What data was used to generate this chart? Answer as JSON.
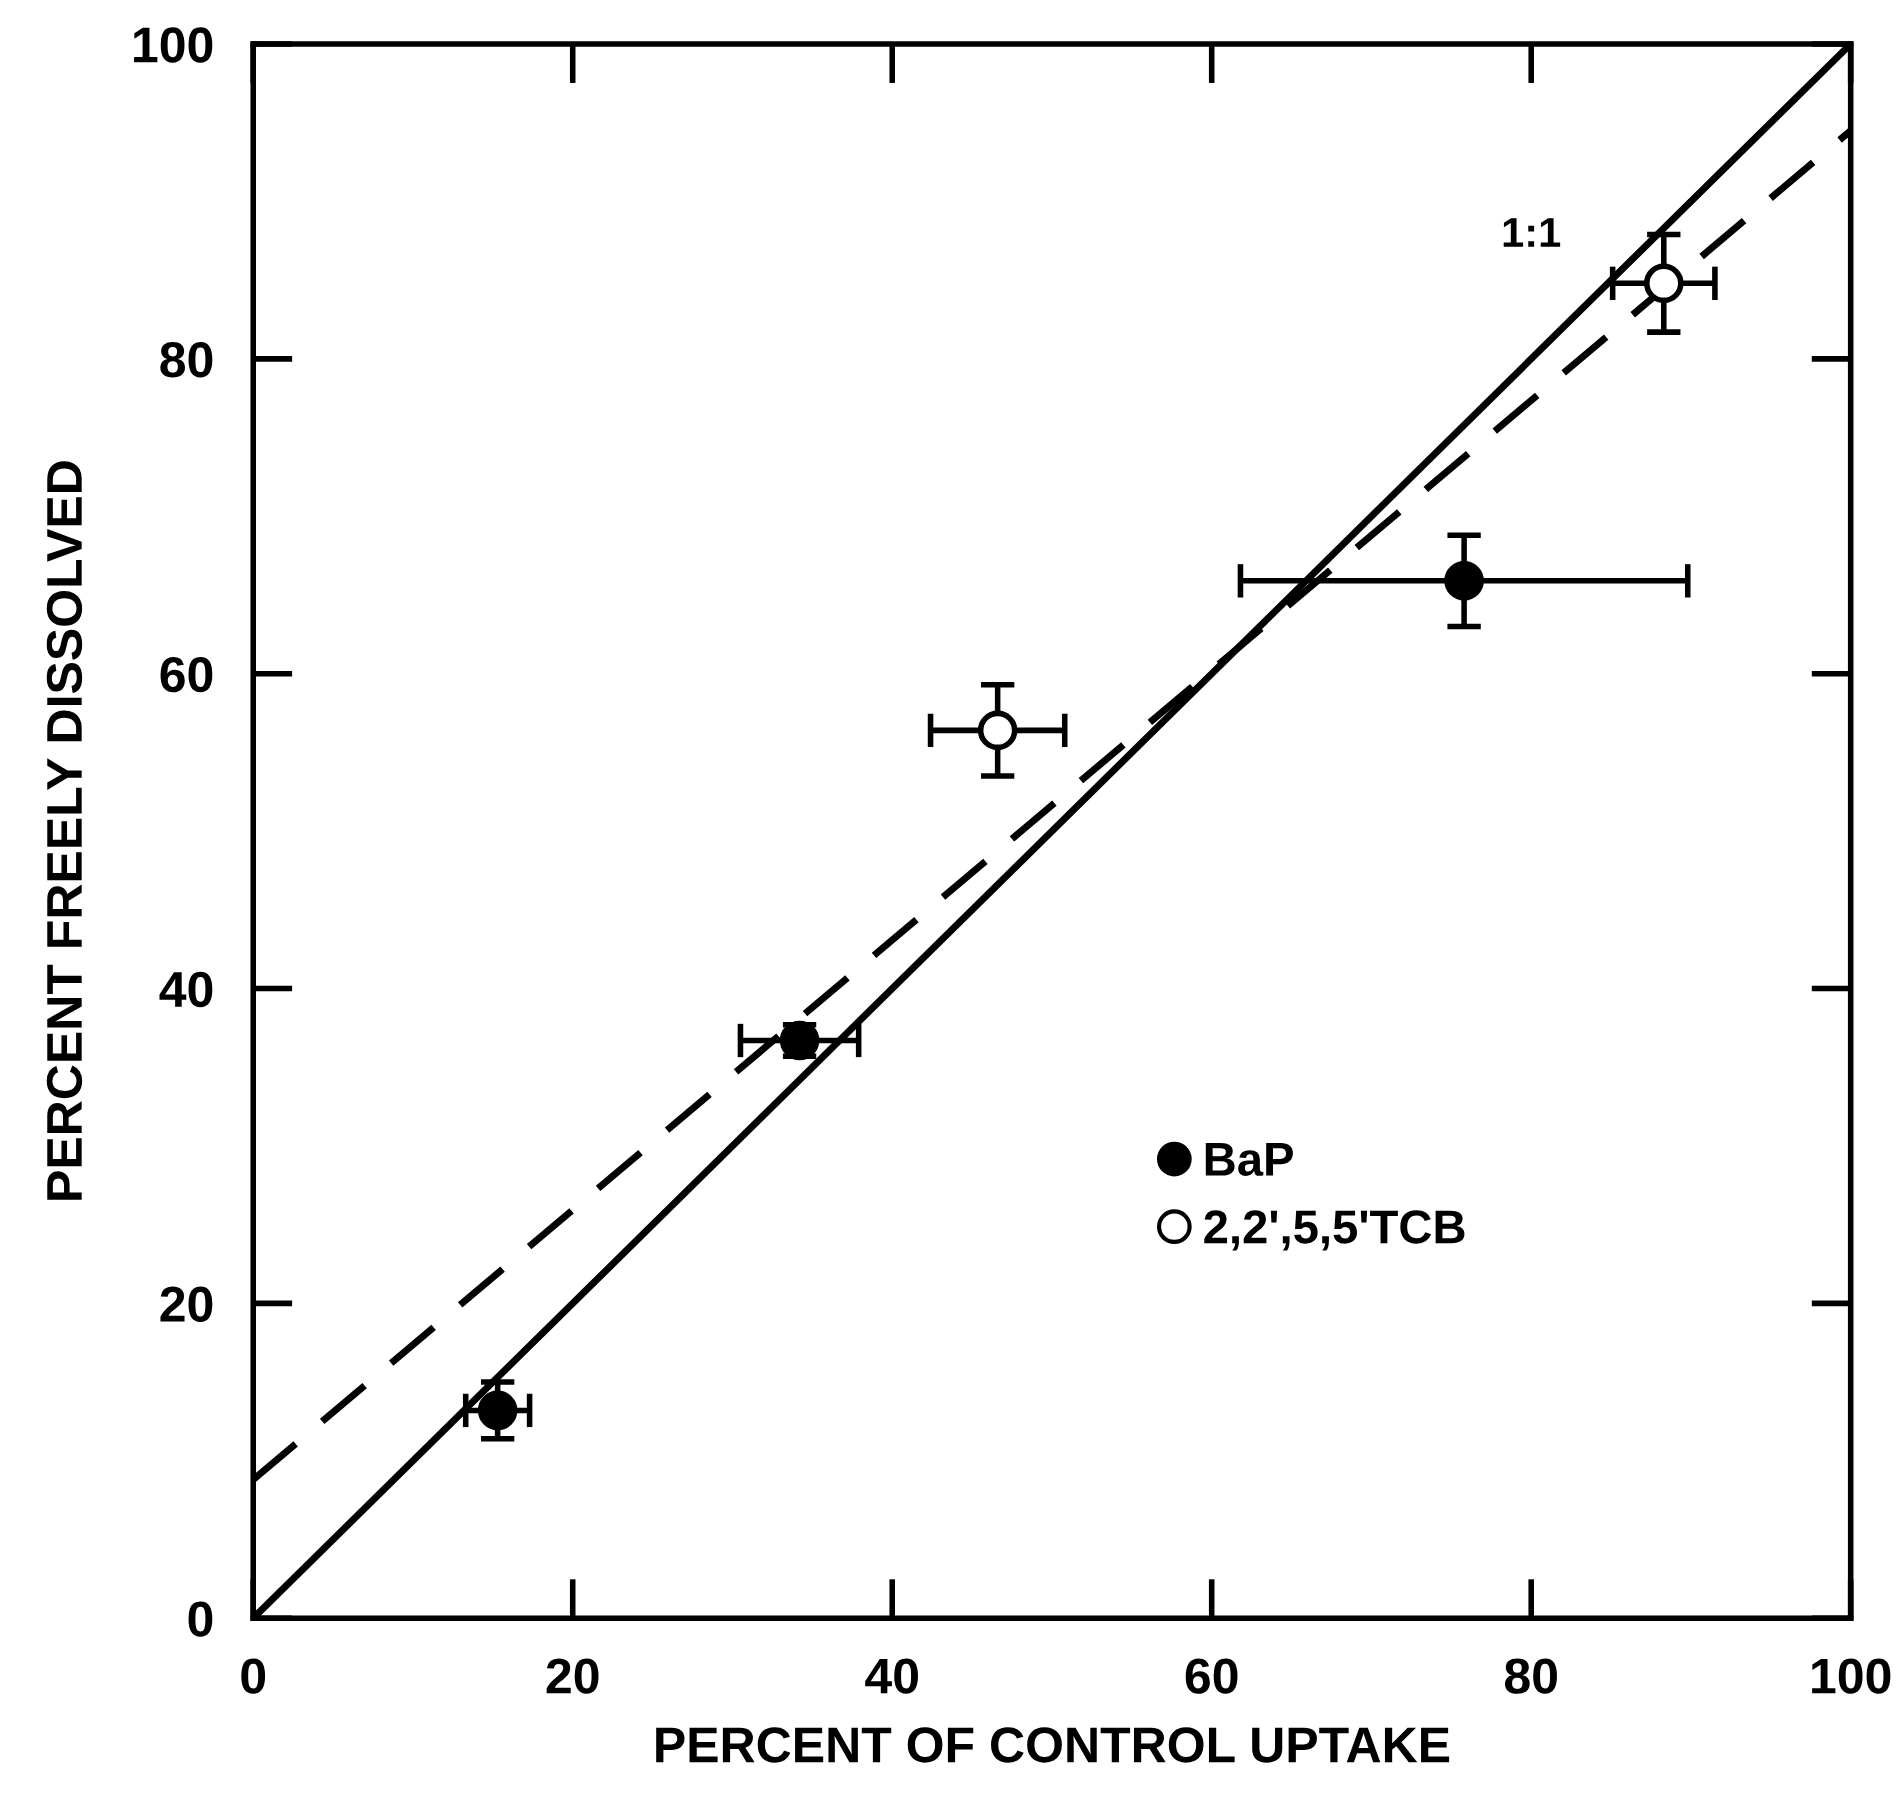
{
  "chart_data": {
    "type": "scatter",
    "xlabel": "PERCENT OF CONTROL UPTAKE",
    "ylabel": "PERCENT FREELY DISSOLVED",
    "xlim": [
      0,
      100
    ],
    "ylim": [
      0,
      100
    ],
    "xticks": [
      0,
      20,
      40,
      60,
      80,
      100
    ],
    "yticks": [
      0,
      20,
      40,
      60,
      80,
      100
    ],
    "grid": false,
    "legend": "bottom right",
    "marker": "circle",
    "series": [
      {
        "name": "BaP",
        "color": "#000000",
        "x": [
          15.3,
          34.2,
          75.8
        ],
        "values": [
          13.2,
          36.7,
          65.9
        ],
        "errors": [
          1.8,
          1,
          2.9
        ],
        "xerrors": [
          2,
          3.7,
          14
        ]
      },
      {
        "name": "2,2ʹ,5,5ʹTCB",
        "color": "#ffffff",
        "x": [
          46.6,
          88.3
        ],
        "values": [
          56.4,
          84.8
        ],
        "errors": [
          2.9,
          3.1
        ],
        "xerrors": [
          4.2,
          3.2
        ]
      },
      {
        "type": "line",
        "color": "#000000",
        "line_style": "solid",
        "marker": "none",
        "x": [
          0,
          100
        ],
        "values": [
          0,
          100
        ]
      },
      {
        "type": "line",
        "color": "#000000",
        "line_style": "dashed",
        "marker": "none",
        "x": [
          0,
          100
        ],
        "values": [
          8.8,
          94.5
        ]
      }
    ],
    "annotations": [
      "1:1"
    ]
  }
}
